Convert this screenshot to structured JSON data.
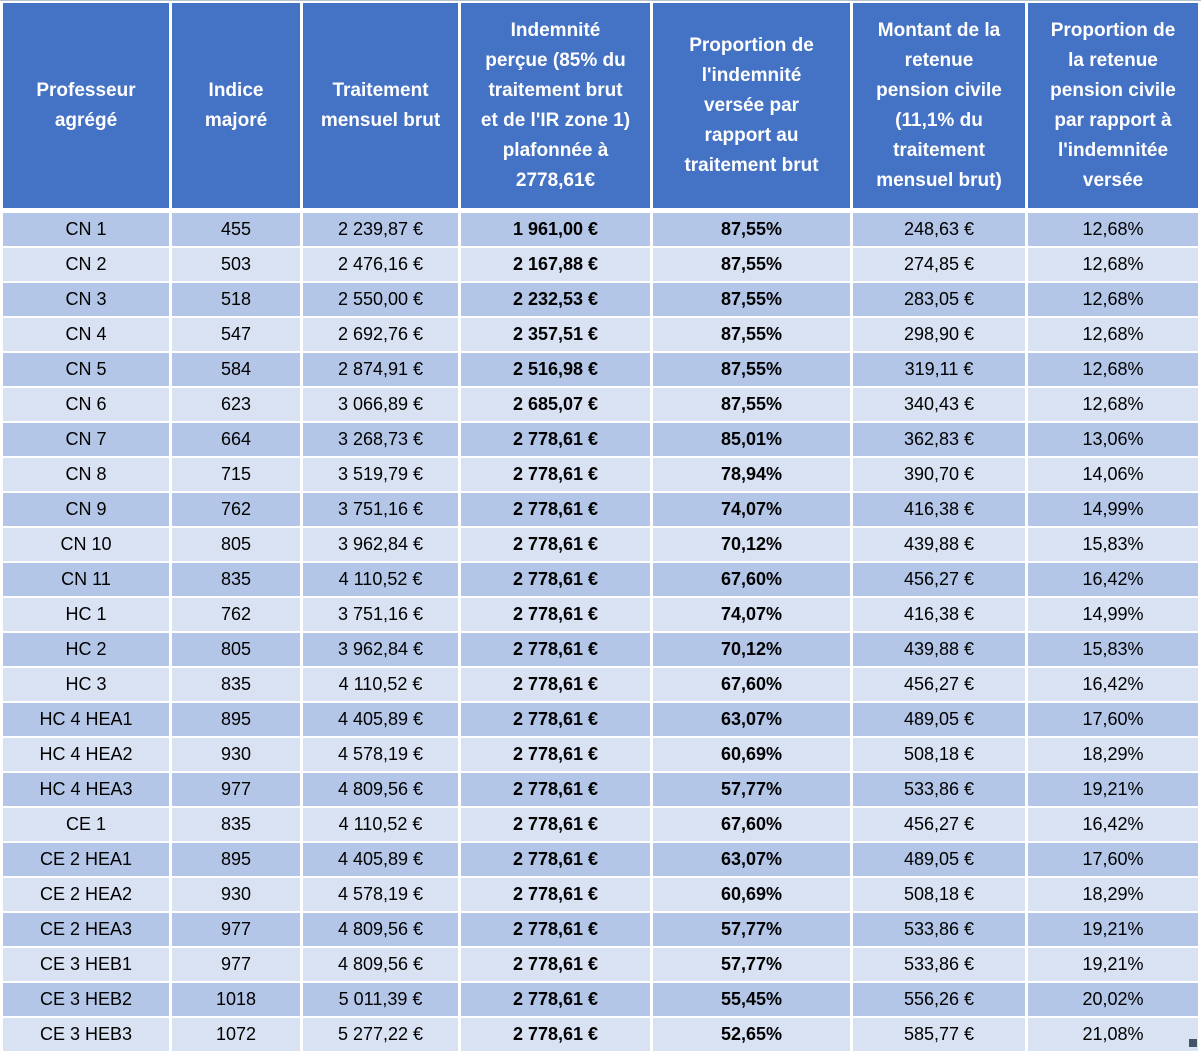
{
  "app": {
    "description": "Spreadsheet table of Professeur agrégé pay grid"
  },
  "colors": {
    "header_bg": "#4472C4",
    "header_text": "#FFFFFF",
    "row_odd_bg": "#B4C6E7",
    "row_even_bg": "#D9E2F3",
    "body_text": "#000000",
    "gridline": "#FFFFFF",
    "fill_handle": "#44546A"
  },
  "table": {
    "columns": [
      {
        "id": "grade",
        "label": "Professeur\nagrégé"
      },
      {
        "id": "indice_majore",
        "label": "Indice\nmajoré"
      },
      {
        "id": "traitement_mensuel_brut",
        "label": "Traitement\nmensuel brut"
      },
      {
        "id": "indemnite_percue",
        "label": "Indemnité\nperçue (85% du\ntraitement brut\net de l'IR zone 1)\nplafonnée à\n2778,61€"
      },
      {
        "id": "proportion_indemnite",
        "label": "Proportion de\nl'indemnité\nversée par\nrapport au\ntraitement brut"
      },
      {
        "id": "retenue_pension_civile",
        "label": "Montant de la\nretenue\npension civile\n(11,1% du\ntraitement\nmensuel brut)"
      },
      {
        "id": "proportion_retenue",
        "label": "Proportion de\nla retenue\npension civile\npar rapport à\nl'indemnitée\nversée"
      }
    ],
    "rows": [
      {
        "cells": [
          "CN 1",
          "455",
          "2 239,87 €",
          "1 961,00 €",
          "87,55%",
          "248,63 €",
          "12,68%"
        ]
      },
      {
        "cells": [
          "CN 2",
          "503",
          "2 476,16 €",
          "2 167,88 €",
          "87,55%",
          "274,85 €",
          "12,68%"
        ]
      },
      {
        "cells": [
          "CN 3",
          "518",
          "2 550,00 €",
          "2 232,53 €",
          "87,55%",
          "283,05 €",
          "12,68%"
        ]
      },
      {
        "cells": [
          "CN 4",
          "547",
          "2 692,76 €",
          "2 357,51 €",
          "87,55%",
          "298,90 €",
          "12,68%"
        ]
      },
      {
        "cells": [
          "CN 5",
          "584",
          "2 874,91 €",
          "2 516,98 €",
          "87,55%",
          "319,11 €",
          "12,68%"
        ]
      },
      {
        "cells": [
          "CN 6",
          "623",
          "3 066,89 €",
          "2 685,07 €",
          "87,55%",
          "340,43 €",
          "12,68%"
        ]
      },
      {
        "cells": [
          "CN 7",
          "664",
          "3 268,73 €",
          "2 778,61 €",
          "85,01%",
          "362,83 €",
          "13,06%"
        ]
      },
      {
        "cells": [
          "CN 8",
          "715",
          "3 519,79 €",
          "2 778,61 €",
          "78,94%",
          "390,70 €",
          "14,06%"
        ]
      },
      {
        "cells": [
          "CN 9",
          "762",
          "3 751,16 €",
          "2 778,61 €",
          "74,07%",
          "416,38 €",
          "14,99%"
        ]
      },
      {
        "cells": [
          "CN 10",
          "805",
          "3 962,84 €",
          "2 778,61 €",
          "70,12%",
          "439,88 €",
          "15,83%"
        ]
      },
      {
        "cells": [
          "CN 11",
          "835",
          "4 110,52 €",
          "2 778,61 €",
          "67,60%",
          "456,27 €",
          "16,42%"
        ]
      },
      {
        "cells": [
          "HC 1",
          "762",
          "3 751,16 €",
          "2 778,61 €",
          "74,07%",
          "416,38 €",
          "14,99%"
        ]
      },
      {
        "cells": [
          "HC 2",
          "805",
          "3 962,84 €",
          "2 778,61 €",
          "70,12%",
          "439,88 €",
          "15,83%"
        ]
      },
      {
        "cells": [
          "HC 3",
          "835",
          "4 110,52 €",
          "2 778,61 €",
          "67,60%",
          "456,27 €",
          "16,42%"
        ]
      },
      {
        "cells": [
          "HC 4 HEA1",
          "895",
          "4 405,89 €",
          "2 778,61 €",
          "63,07%",
          "489,05 €",
          "17,60%"
        ]
      },
      {
        "cells": [
          "HC 4 HEA2",
          "930",
          "4 578,19 €",
          "2 778,61 €",
          "60,69%",
          "508,18 €",
          "18,29%"
        ]
      },
      {
        "cells": [
          "HC 4 HEA3",
          "977",
          "4 809,56 €",
          "2 778,61 €",
          "57,77%",
          "533,86 €",
          "19,21%"
        ]
      },
      {
        "cells": [
          "CE 1",
          "835",
          "4 110,52 €",
          "2 778,61 €",
          "67,60%",
          "456,27 €",
          "16,42%"
        ]
      },
      {
        "cells": [
          "CE 2 HEA1",
          "895",
          "4 405,89 €",
          "2 778,61 €",
          "63,07%",
          "489,05 €",
          "17,60%"
        ]
      },
      {
        "cells": [
          "CE 2 HEA2",
          "930",
          "4 578,19 €",
          "2 778,61 €",
          "60,69%",
          "508,18 €",
          "18,29%"
        ]
      },
      {
        "cells": [
          "CE 2 HEA3",
          "977",
          "4 809,56 €",
          "2 778,61 €",
          "57,77%",
          "533,86 €",
          "19,21%"
        ]
      },
      {
        "cells": [
          "CE 3 HEB1",
          "977",
          "4 809,56 €",
          "2 778,61 €",
          "57,77%",
          "533,86 €",
          "19,21%"
        ]
      },
      {
        "cells": [
          "CE 3 HEB2",
          "1018",
          "5 011,39 €",
          "2 778,61 €",
          "55,45%",
          "556,26 €",
          "20,02%"
        ]
      },
      {
        "cells": [
          "CE 3 HEB3",
          "1072",
          "5 277,22 €",
          "2 778,61 €",
          "52,65%",
          "585,77 €",
          "21,08%"
        ]
      }
    ],
    "bold_column_indexes": [
      3,
      4
    ]
  }
}
